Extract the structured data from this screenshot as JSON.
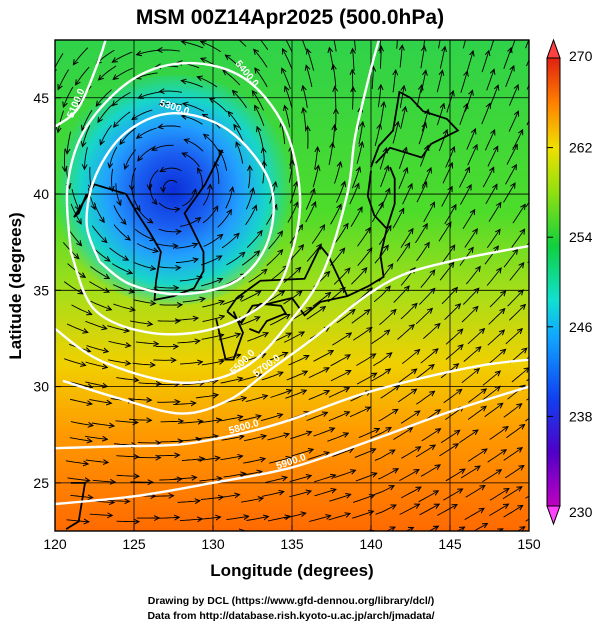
{
  "chart_data": {
    "type": "heatmap",
    "title": "MSM 00Z14Apr2025 (500.0hPa)",
    "xlabel": "Longitude (degrees)",
    "ylabel": "Latitude (degrees)",
    "xlim": [
      120,
      150
    ],
    "ylim": [
      22.5,
      48
    ],
    "x_ticks": [
      120,
      125,
      130,
      135,
      140,
      145,
      150
    ],
    "y_ticks": [
      25,
      30,
      35,
      40,
      45
    ],
    "grid": true,
    "colorbar": {
      "range": [
        230,
        270
      ],
      "ticks": [
        270,
        262,
        254,
        246,
        238,
        230
      ],
      "colors": [
        "#c000c0",
        "#4000d0",
        "#0050ff",
        "#00d0ff",
        "#00e060",
        "#a0e000",
        "#f0e000",
        "#ff8000",
        "#e02000"
      ]
    },
    "cold_low": {
      "lon": 127.5,
      "lat": 40.2,
      "value": 238
    },
    "temperature_gradient": [
      {
        "lat": 23,
        "value": 265
      },
      {
        "lat": 27,
        "value": 263
      },
      {
        "lat": 31,
        "value": 260
      },
      {
        "lat": 35,
        "value": 256
      },
      {
        "lat": 40,
        "value": 254
      },
      {
        "lat": 45,
        "value": 253
      },
      {
        "lat": 48,
        "value": 252
      }
    ],
    "height_contours": [
      {
        "label": "5300.0",
        "points": [
          [
            122.8,
            36.5
          ],
          [
            122,
            38.5
          ],
          [
            122.6,
            41
          ],
          [
            124.5,
            43.2
          ],
          [
            127.5,
            44.2
          ],
          [
            131,
            43.3
          ],
          [
            133.6,
            40.6
          ],
          [
            133.5,
            37.6
          ],
          [
            131.5,
            35.5
          ],
          [
            128,
            34.8
          ],
          [
            124.8,
            35.3
          ],
          [
            122.8,
            36.5
          ]
        ]
      },
      {
        "label": "5400.0",
        "points": [
          [
            121,
            37
          ],
          [
            120.8,
            40.5
          ],
          [
            122,
            43.5
          ],
          [
            125,
            46
          ],
          [
            128.5,
            46.8
          ],
          [
            132,
            46
          ],
          [
            134.5,
            43.5
          ],
          [
            135.5,
            40
          ],
          [
            135,
            37
          ],
          [
            133.5,
            34.5
          ],
          [
            130,
            33
          ],
          [
            126,
            32.8
          ],
          [
            122.5,
            34
          ],
          [
            121,
            37
          ]
        ]
      },
      {
        "label": "5500.0",
        "points": [
          [
            120,
            33
          ],
          [
            123,
            31.3
          ],
          [
            128,
            30.2
          ],
          [
            132,
            31
          ],
          [
            135,
            33.5
          ],
          [
            137,
            36
          ],
          [
            138.5,
            40
          ],
          [
            139,
            43
          ],
          [
            140,
            46.5
          ],
          [
            140.5,
            48
          ]
        ]
      },
      {
        "label": "5700.0",
        "points": [
          [
            120.5,
            30.3
          ],
          [
            124,
            29.4
          ],
          [
            128,
            28.6
          ],
          [
            131,
            29.3
          ],
          [
            133.5,
            30.8
          ],
          [
            136.5,
            32.6
          ],
          [
            139.5,
            34.6
          ],
          [
            142,
            35.8
          ],
          [
            145,
            36.5
          ],
          [
            148,
            37
          ],
          [
            150,
            37.3
          ]
        ]
      },
      {
        "label": "5800.0",
        "points": [
          [
            120,
            26.8
          ],
          [
            124,
            26.9
          ],
          [
            128,
            27
          ],
          [
            132,
            27.6
          ],
          [
            135,
            28.3
          ],
          [
            139,
            29.5
          ],
          [
            143,
            30.4
          ],
          [
            147,
            31.1
          ],
          [
            150,
            31.4
          ]
        ]
      },
      {
        "label": "5900.0",
        "points": [
          [
            120,
            23.9
          ],
          [
            125,
            24.3
          ],
          [
            130,
            25
          ],
          [
            135,
            25.8
          ],
          [
            140,
            27.2
          ],
          [
            145,
            28.7
          ],
          [
            150,
            30
          ]
        ]
      },
      {
        "label": "5100.0",
        "points": [
          [
            120,
            43.5
          ],
          [
            121.5,
            44.5
          ],
          [
            122.8,
            47
          ],
          [
            123.2,
            48
          ]
        ]
      }
    ]
  },
  "credits": {
    "line1": "Drawing by DCL (https://www.gfd-dennou.org/library/dcl/)",
    "line2": "Data from http://database.rish.kyoto-u.ac.jp/arch/jmadata/"
  }
}
